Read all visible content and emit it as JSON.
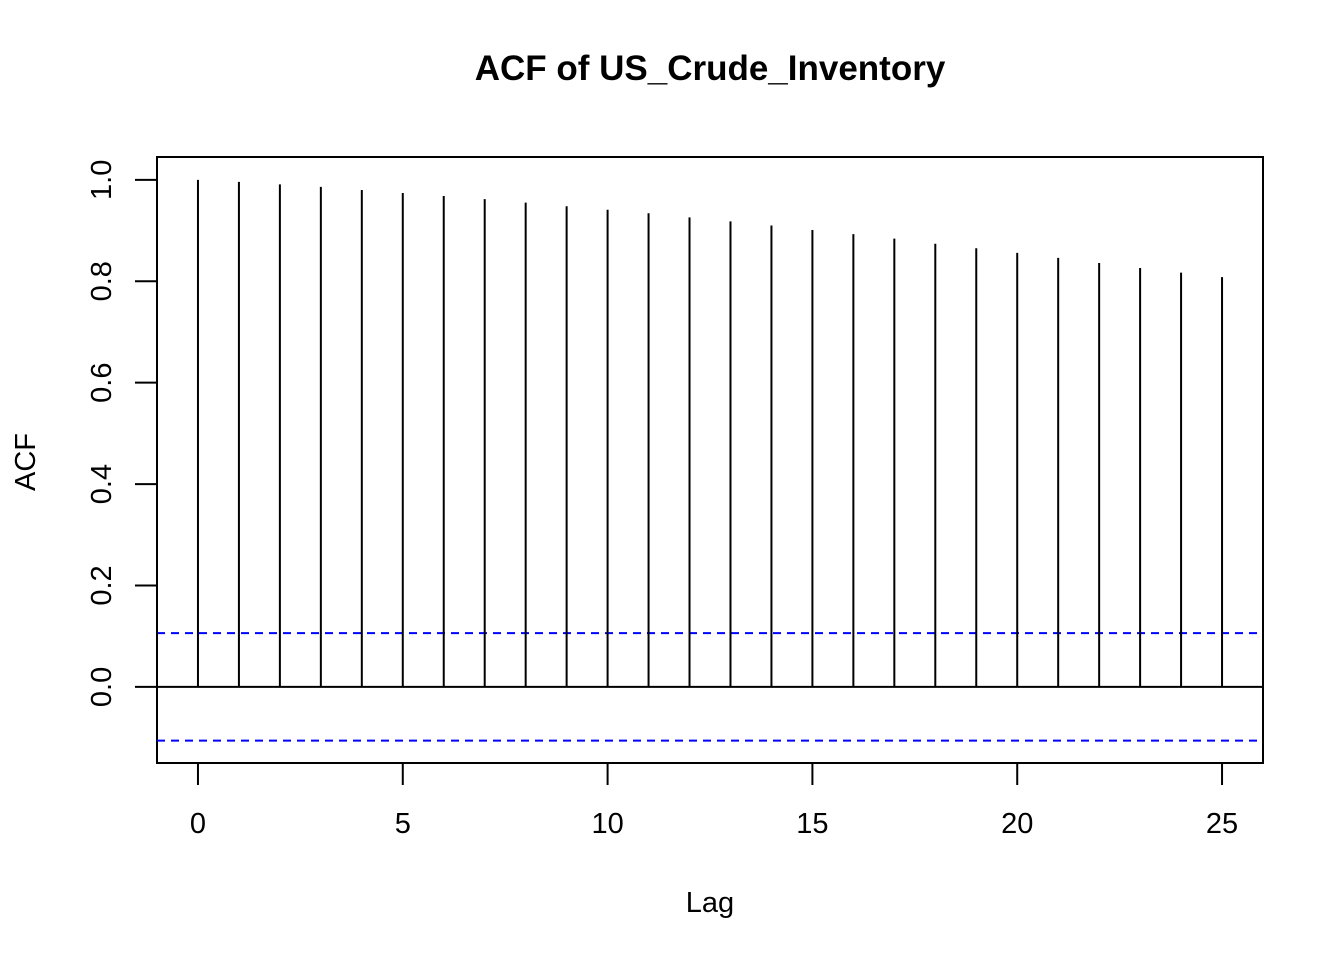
{
  "chart_data": {
    "type": "bar",
    "title": "ACF of US_Crude_Inventory",
    "xlabel": "Lag",
    "ylabel": "ACF",
    "x_ticks": [
      "0",
      "5",
      "10",
      "15",
      "20",
      "25"
    ],
    "y_ticks": [
      "0.0",
      "0.2",
      "0.4",
      "0.6",
      "0.8",
      "1.0"
    ],
    "xlim": [
      -1,
      26
    ],
    "ylim": [
      -0.15,
      1.045
    ],
    "grid": false,
    "lags": [
      0,
      1,
      2,
      3,
      4,
      5,
      6,
      7,
      8,
      9,
      10,
      11,
      12,
      13,
      14,
      15,
      16,
      17,
      18,
      19,
      20,
      21,
      22,
      23,
      24,
      25
    ],
    "values": [
      1.0,
      0.996,
      0.991,
      0.986,
      0.98,
      0.974,
      0.968,
      0.962,
      0.955,
      0.948,
      0.941,
      0.934,
      0.926,
      0.918,
      0.91,
      0.901,
      0.893,
      0.884,
      0.874,
      0.865,
      0.856,
      0.846,
      0.836,
      0.826,
      0.817,
      0.808
    ],
    "confidence_bounds": [
      0.106,
      -0.106
    ],
    "colors": {
      "bars": "#000000",
      "zero_line": "#000000",
      "confidence_lines": "#0000ff",
      "frame": "#000000"
    }
  }
}
